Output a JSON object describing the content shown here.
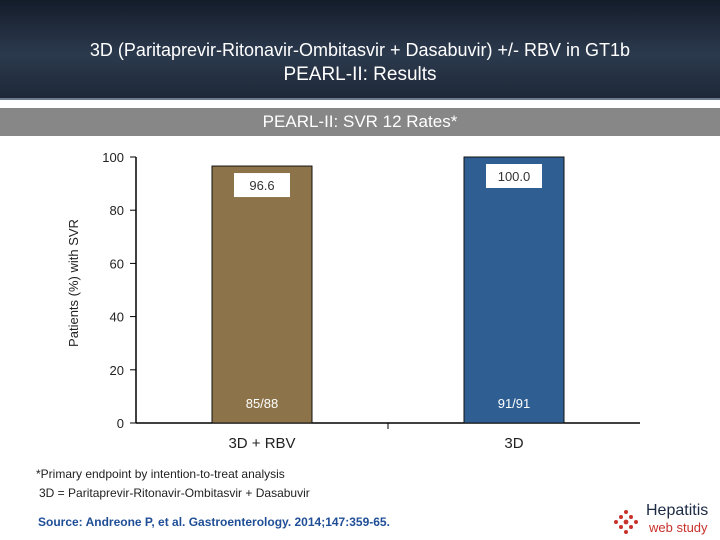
{
  "header": {
    "title_line1": "3D (Paritaprevir-Ritonavir-Ombitasvir + Dasabuvir) +/- RBV in GT1b",
    "title_line2": "PEARL-II: Results"
  },
  "subheader": {
    "title": "PEARL-II: SVR 12 Rates*"
  },
  "chart_data": {
    "type": "bar",
    "title": "PEARL-II: SVR 12 Rates*",
    "ylabel": "Patients (%) with SVR",
    "xlabel": "",
    "ylim": [
      0,
      100
    ],
    "yticks": [
      0,
      20,
      40,
      60,
      80,
      100
    ],
    "categories": [
      "3D + RBV",
      "3D"
    ],
    "values": [
      96.6,
      100.0
    ],
    "value_labels": [
      "96.6",
      "100.0"
    ],
    "count_labels": [
      "85/88",
      "91/91"
    ],
    "colors": [
      "#8c7349",
      "#2f5f92"
    ],
    "grid": false,
    "legend": "none"
  },
  "footnotes": {
    "line1": "*Primary endpoint by intention-to-treat analysis",
    "line2": "3D = Paritaprevir-Ritonavir-Ombitasvir + Dasabuvir"
  },
  "source": "Source: Andreone P, et al. Gastroenterology.  2014;147:359-65.",
  "logo": {
    "word1": "Hepatitis",
    "word2": "web study"
  },
  "colors": {
    "header_bg": "#1d2736",
    "subheader_bg": "#878787",
    "source_text": "#1f4e96",
    "logo_accent": "#c8312c"
  }
}
